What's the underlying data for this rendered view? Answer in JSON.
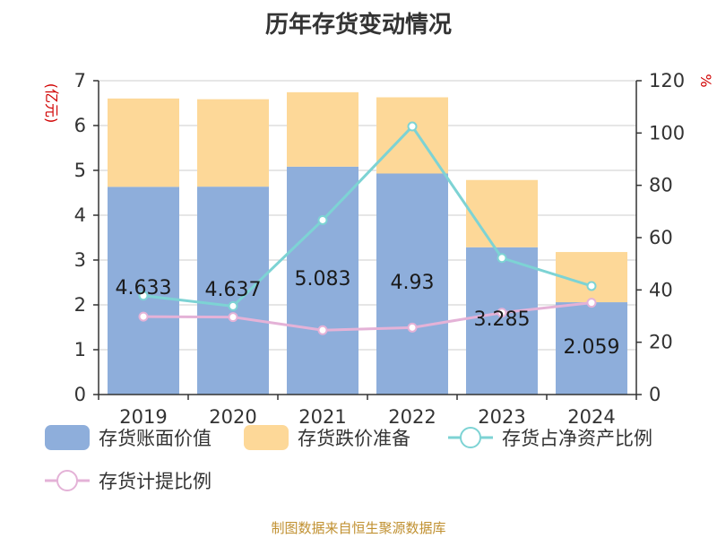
{
  "chart_data": {
    "type": "bar",
    "title": "历年存货变动情况",
    "categories": [
      "2019",
      "2020",
      "2021",
      "2022",
      "2023",
      "2024"
    ],
    "series": [
      {
        "name": "存货账面价值",
        "kind": "bar",
        "axis": "left",
        "color": "#8eaedb",
        "values": [
          4.633,
          4.637,
          5.083,
          4.93,
          3.285,
          2.059
        ]
      },
      {
        "name": "存货跌价准备",
        "kind": "bar-stacked",
        "axis": "left",
        "color": "#fdd898",
        "values": [
          1.97,
          1.95,
          1.66,
          1.7,
          1.5,
          1.12
        ]
      },
      {
        "name": "存货占净资产比例",
        "kind": "line",
        "axis": "right",
        "color": "#7dd3d4",
        "values": [
          37.8,
          33.8,
          66.7,
          102.5,
          52.2,
          41.5
        ]
      },
      {
        "name": "存货计提比例",
        "kind": "line",
        "axis": "right",
        "color": "#e4b2d7",
        "values": [
          29.8,
          29.6,
          24.6,
          25.6,
          31.3,
          35.1
        ]
      }
    ],
    "data_labels": [
      "4.633",
      "4.637",
      "5.083",
      "4.93",
      "3.285",
      "2.059"
    ],
    "y_left": {
      "label": "(亿元)",
      "ylim": [
        0,
        7
      ],
      "ticks": [
        "0",
        "1",
        "2",
        "3",
        "4",
        "5",
        "6",
        "7"
      ]
    },
    "y_right": {
      "label": "%",
      "ylim": [
        0,
        120
      ],
      "ticks": [
        "0",
        "20",
        "40",
        "60",
        "80",
        "100",
        "120"
      ]
    },
    "grid": true,
    "legend_position": "bottom"
  },
  "source": "制图数据来自恒生聚源数据库",
  "colors": {
    "axis_label": "#d00000",
    "source": "#c09030"
  }
}
